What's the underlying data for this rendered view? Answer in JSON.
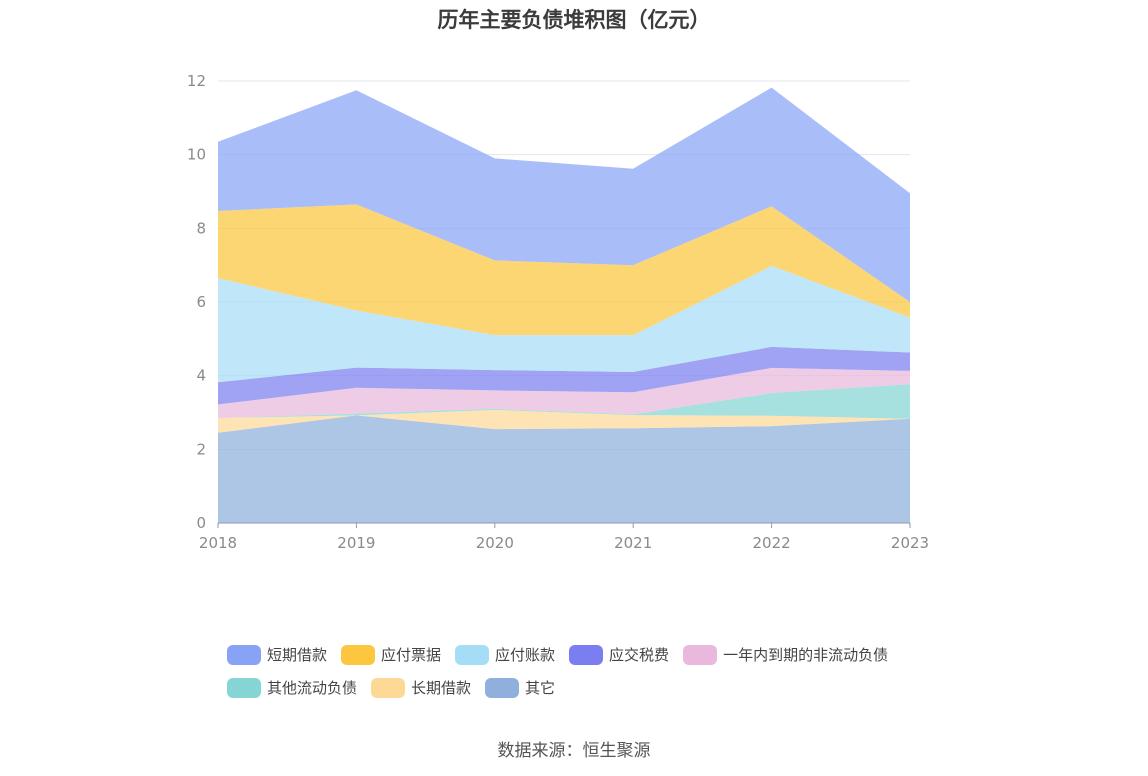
{
  "title": "历年主要负债堆积图（亿元）",
  "source": "数据来源：恒生聚源",
  "chart_data": {
    "type": "area",
    "stacked": true,
    "x": [
      "2018",
      "2019",
      "2020",
      "2021",
      "2022",
      "2023"
    ],
    "ylim": [
      0,
      12
    ],
    "yticks": [
      0,
      2,
      4,
      6,
      8,
      10,
      12
    ],
    "grid": true,
    "legend_position": "bottom",
    "series": [
      {
        "name": "其它",
        "color": "#8fb0dc",
        "values": [
          2.45,
          2.92,
          2.55,
          2.57,
          2.63,
          2.83
        ]
      },
      {
        "name": "长期借款",
        "color": "#fdd998",
        "values": [
          0.4,
          0.0,
          0.52,
          0.36,
          0.28,
          0.0
        ]
      },
      {
        "name": "其他流动负债",
        "color": "#84d5d4",
        "values": [
          0.0,
          0.05,
          0.03,
          0.02,
          0.62,
          0.94
        ]
      },
      {
        "name": "一年内到期的非流动负债",
        "color": "#e9b8dc",
        "values": [
          0.37,
          0.7,
          0.5,
          0.6,
          0.68,
          0.36
        ]
      },
      {
        "name": "应交税费",
        "color": "#7b7ef0",
        "values": [
          0.6,
          0.55,
          0.55,
          0.55,
          0.57,
          0.5
        ]
      },
      {
        "name": "应付账款",
        "color": "#a6ddf6",
        "values": [
          2.83,
          1.55,
          0.95,
          1.0,
          2.2,
          0.95
        ]
      },
      {
        "name": "应付票据",
        "color": "#fcc63e",
        "values": [
          1.82,
          2.88,
          2.03,
          1.9,
          1.62,
          0.42
        ]
      },
      {
        "name": "短期借款",
        "color": "#88a3f6",
        "values": [
          1.88,
          3.1,
          2.77,
          2.62,
          3.22,
          2.95
        ]
      }
    ]
  },
  "legend": [
    [
      "短期借款",
      "应付票据",
      "应付账款",
      "应交税费",
      "一年内到期的非流动负债"
    ],
    [
      "其他流动负债",
      "长期借款",
      "其它"
    ]
  ]
}
